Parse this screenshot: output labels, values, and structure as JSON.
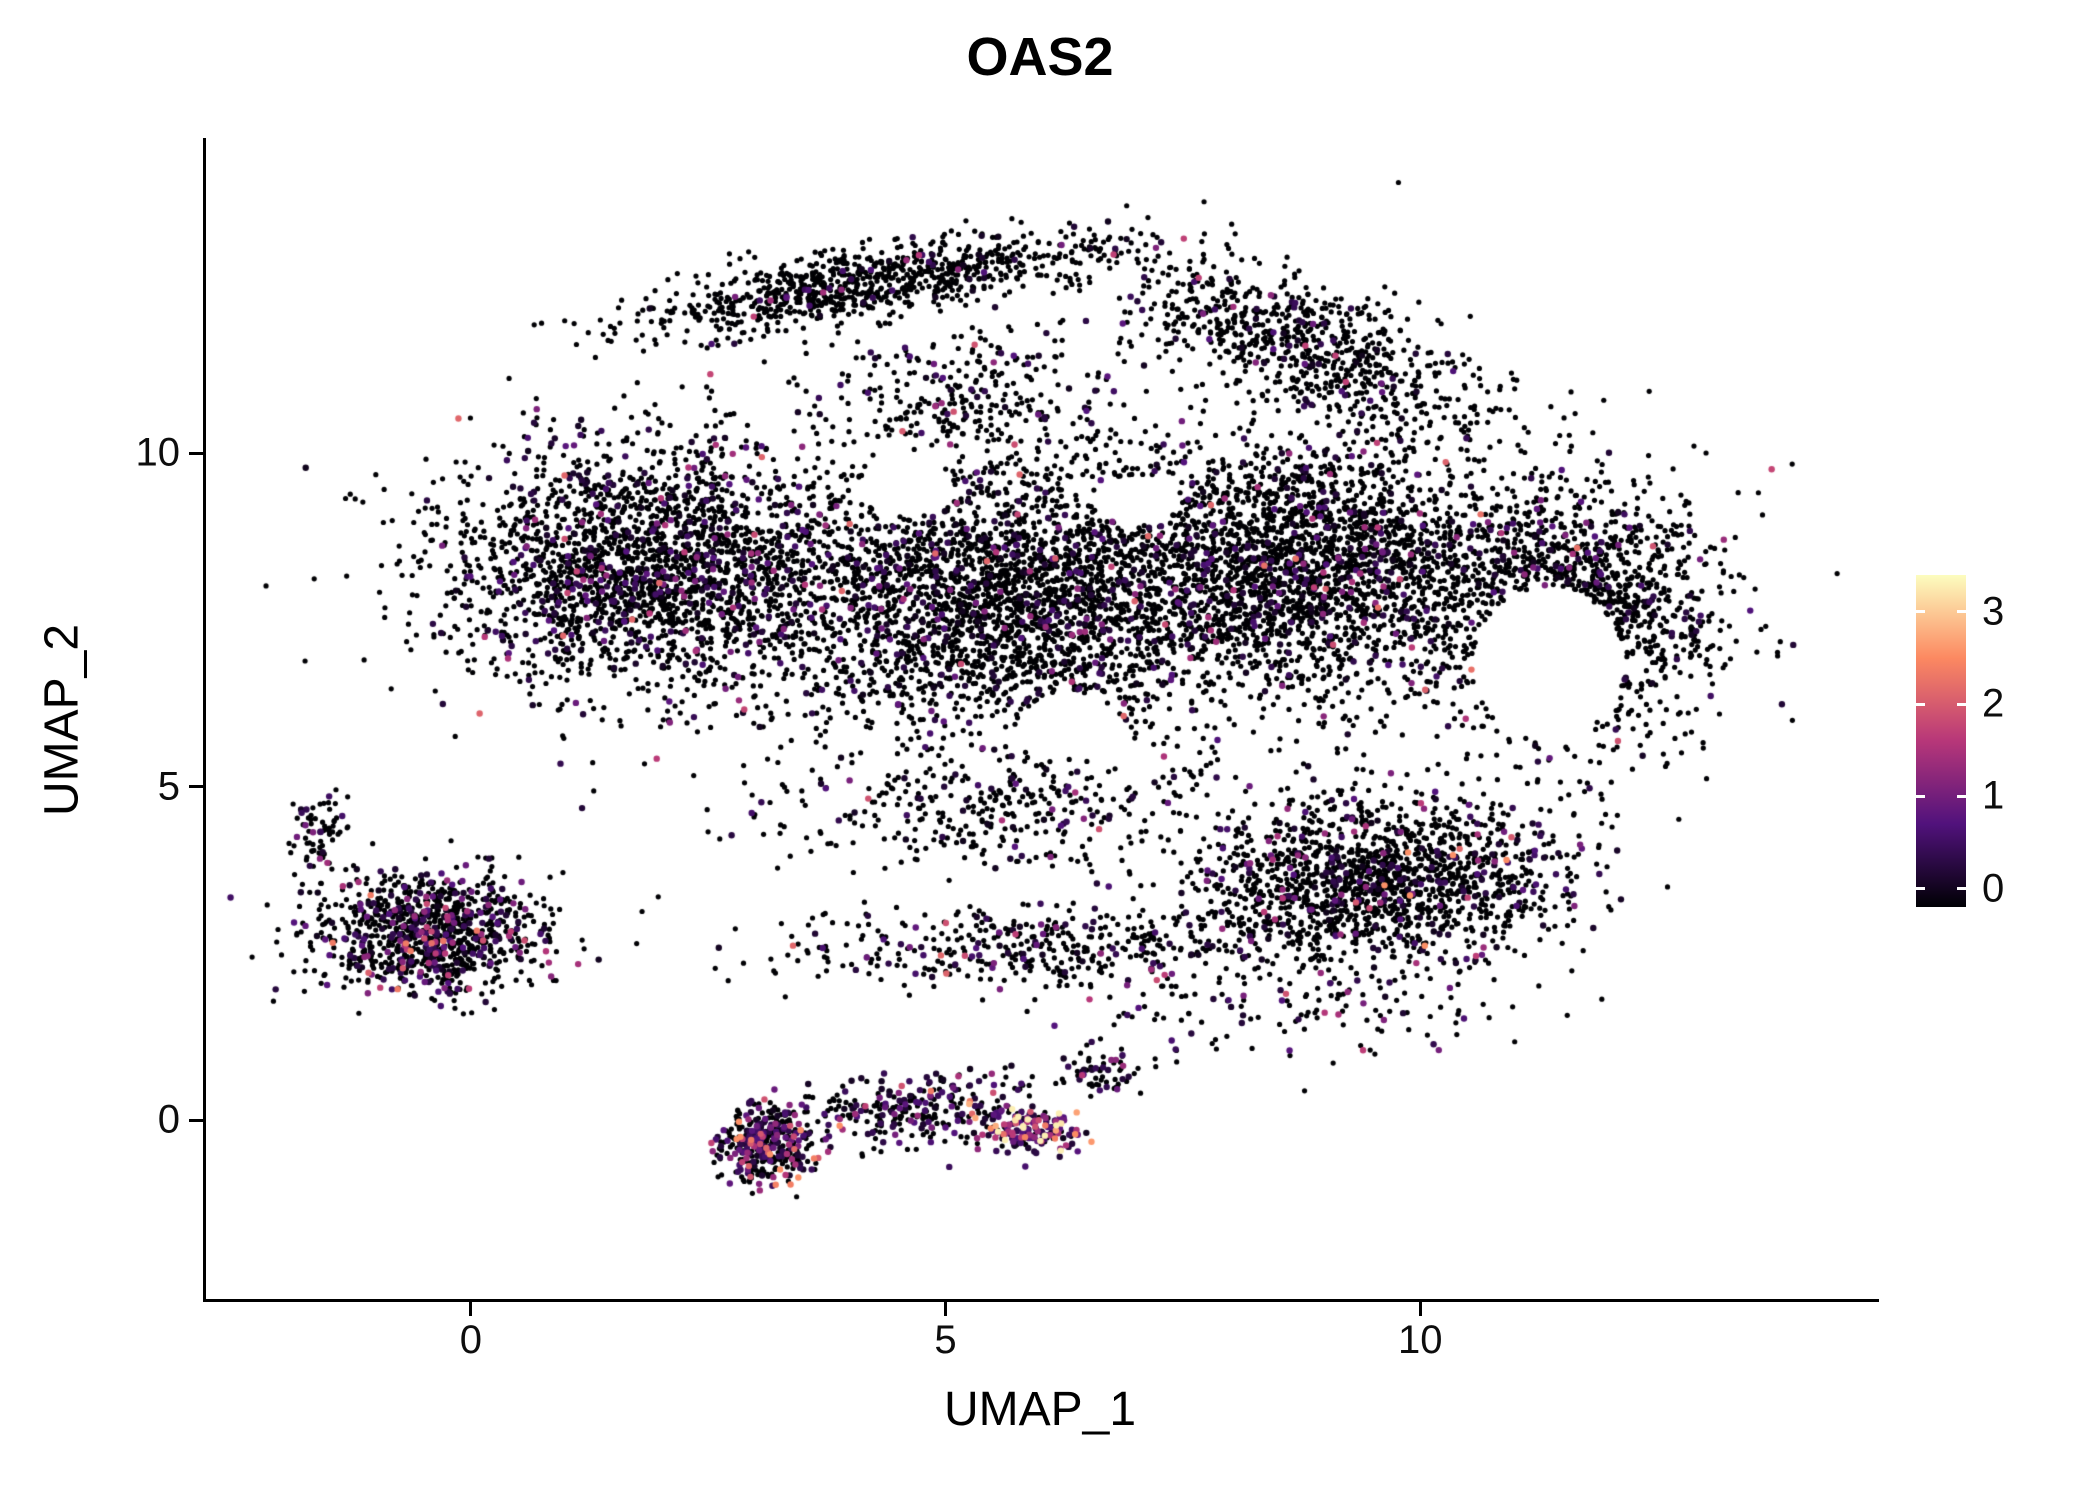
{
  "page": {
    "background": "#ffffff"
  },
  "chart_data": {
    "type": "scatter",
    "title": "OAS2",
    "xlabel": "UMAP_1",
    "ylabel": "UMAP_2",
    "xlim": [
      -2.8,
      14.8
    ],
    "ylim": [
      -2.7,
      14.7
    ],
    "x_ticks": [
      {
        "value": 0,
        "label": "0"
      },
      {
        "value": 5,
        "label": "5"
      },
      {
        "value": 10,
        "label": "10"
      }
    ],
    "y_ticks": [
      {
        "value": 0,
        "label": "0"
      },
      {
        "value": 5,
        "label": "5"
      },
      {
        "value": 10,
        "label": "10"
      }
    ],
    "grid": false,
    "legend_position": "right",
    "point_color_zero": "#000004",
    "colorbar": {
      "min": -0.2,
      "max": 3.4,
      "value_max": 3.4,
      "ticks": [
        {
          "value": 0,
          "label": "0"
        },
        {
          "value": 1,
          "label": "1"
        },
        {
          "value": 2,
          "label": "2"
        },
        {
          "value": 3,
          "label": "3"
        }
      ],
      "colormap": "magma",
      "stops": [
        {
          "t": 0.0,
          "c": "#000004"
        },
        {
          "t": 0.25,
          "c": "#51127c"
        },
        {
          "t": 0.5,
          "c": "#b73779"
        },
        {
          "t": 0.75,
          "c": "#fc8961"
        },
        {
          "t": 1.0,
          "c": "#fcfdbf"
        }
      ]
    },
    "seed": 42,
    "point_radius_zero": 2.6,
    "point_radius_expr": 3.2,
    "clusters": [
      {
        "name": "top-band",
        "cx": 4.2,
        "cy": 12.55,
        "sx": 1.3,
        "sy": 0.27,
        "n": 900,
        "tilt": 0.22,
        "expr_frac": 0.07,
        "expr_mean": 0.5,
        "expr_max": 1.8
      },
      {
        "name": "upper-mid-sparse",
        "cx": 5.3,
        "cy": 10.9,
        "sx": 0.85,
        "sy": 0.5,
        "n": 300,
        "tilt": 0,
        "expr_frac": 0.12,
        "expr_mean": 0.5,
        "expr_max": 2.0
      },
      {
        "name": "main-left",
        "cx": 1.9,
        "cy": 8.3,
        "sx": 1.1,
        "sy": 0.95,
        "n": 2400,
        "tilt": 0,
        "expr_frac": 0.15,
        "expr_mean": 0.55,
        "expr_max": 2.2
      },
      {
        "name": "main-center",
        "cx": 5.5,
        "cy": 7.8,
        "sx": 1.2,
        "sy": 1.05,
        "n": 2800,
        "tilt": 0,
        "expr_frac": 0.12,
        "expr_mean": 0.5,
        "expr_max": 2.2
      },
      {
        "name": "main-right",
        "cx": 8.8,
        "cy": 8.3,
        "sx": 1.2,
        "sy": 1.0,
        "n": 2800,
        "tilt": 0,
        "expr_frac": 0.12,
        "expr_mean": 0.55,
        "expr_max": 2.3
      },
      {
        "name": "far-right-lobe",
        "cx": 11.7,
        "cy": 7.6,
        "sx": 0.75,
        "sy": 1.0,
        "n": 1400,
        "tilt": 0,
        "expr_frac": 0.12,
        "expr_mean": 0.5,
        "expr_max": 2.0
      },
      {
        "name": "top-right-slope",
        "cx": 8.8,
        "cy": 11.6,
        "sx": 0.95,
        "sy": 0.5,
        "n": 800,
        "tilt": -0.5,
        "expr_frac": 0.08,
        "expr_mean": 0.5,
        "expr_max": 1.8
      },
      {
        "name": "lower-right-arm",
        "cx": 9.6,
        "cy": 3.6,
        "sx": 1.0,
        "sy": 0.62,
        "n": 1600,
        "tilt": 0,
        "expr_frac": 0.14,
        "expr_mean": 0.6,
        "expr_max": 2.6
      },
      {
        "name": "mid-bottom-band",
        "cx": 6.0,
        "cy": 2.6,
        "sx": 1.4,
        "sy": 0.3,
        "n": 450,
        "tilt": 0,
        "expr_frac": 0.18,
        "expr_mean": 0.6,
        "expr_max": 2.2
      },
      {
        "name": "mid-gap-scatter",
        "cx": 5.5,
        "cy": 4.6,
        "sx": 1.3,
        "sy": 0.45,
        "n": 350,
        "tilt": 0,
        "expr_frac": 0.15,
        "expr_mean": 0.5,
        "expr_max": 2.0
      },
      {
        "name": "below-arm-scatter",
        "cx": 8.5,
        "cy": 1.6,
        "sx": 1.2,
        "sy": 0.4,
        "n": 130,
        "tilt": 0,
        "expr_frac": 0.2,
        "expr_mean": 0.6,
        "expr_max": 2.0
      },
      {
        "name": "left-cluster",
        "cx": -0.45,
        "cy": 2.8,
        "sx": 0.6,
        "sy": 0.45,
        "n": 1000,
        "tilt": 0,
        "expr_frac": 0.28,
        "expr_mean": 0.65,
        "expr_max": 2.4
      },
      {
        "name": "left-cluster-tail",
        "cx": -1.6,
        "cy": 4.3,
        "sx": 0.15,
        "sy": 0.25,
        "n": 70,
        "tilt": 0,
        "expr_frac": 0.2,
        "expr_mean": 0.5,
        "expr_max": 1.5
      },
      {
        "name": "bottom-left-dense",
        "cx": 3.1,
        "cy": -0.35,
        "sx": 0.28,
        "sy": 0.3,
        "n": 380,
        "tilt": 0,
        "expr_frac": 0.5,
        "expr_mean": 0.8,
        "expr_max": 2.6
      },
      {
        "name": "bottom-arc",
        "cx": 4.7,
        "cy": 0.15,
        "sx": 0.65,
        "sy": 0.26,
        "n": 280,
        "tilt": 0.15,
        "expr_frac": 0.38,
        "expr_mean": 0.7,
        "expr_max": 2.4
      },
      {
        "name": "bottom-bright",
        "cx": 5.85,
        "cy": -0.15,
        "sx": 0.25,
        "sy": 0.17,
        "n": 160,
        "tilt": 0,
        "expr_frac": 0.85,
        "expr_mean": 1.3,
        "expr_max": 3.3
      },
      {
        "name": "bottom-tail",
        "cx": 6.6,
        "cy": 0.75,
        "sx": 0.17,
        "sy": 0.2,
        "n": 60,
        "tilt": 0,
        "expr_frac": 0.3,
        "expr_mean": 0.6,
        "expr_max": 2.0
      }
    ],
    "holes": [
      {
        "cx": 11.35,
        "cy": 6.85,
        "rx": 0.8,
        "ry": 1.15
      },
      {
        "cx": 4.6,
        "cy": 9.45,
        "rx": 0.5,
        "ry": 0.4
      },
      {
        "cx": 7.0,
        "cy": 9.3,
        "rx": 0.45,
        "ry": 0.38
      },
      {
        "cx": 6.3,
        "cy": 5.9,
        "rx": 0.55,
        "ry": 0.48
      }
    ]
  }
}
